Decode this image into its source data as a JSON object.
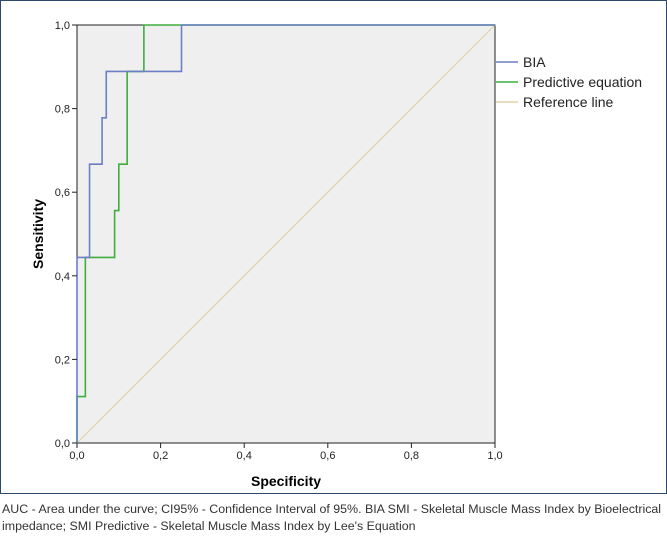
{
  "chart_data": {
    "type": "line",
    "title": "",
    "xlabel": "Specificity",
    "ylabel": "Sensitivity",
    "xlim": [
      0,
      1
    ],
    "ylim": [
      0,
      1
    ],
    "xticks": [
      "0,0",
      "0,2",
      "0,4",
      "0,6",
      "0,8",
      "1,0"
    ],
    "yticks": [
      "0,0",
      "0,2",
      "0,4",
      "0,6",
      "0,8",
      "1,0"
    ],
    "legend_position": "right",
    "series": [
      {
        "name": "BIA",
        "color": "#6b7fc4",
        "x": [
          0,
          0,
          0.03,
          0.03,
          0.06,
          0.06,
          0.07,
          0.07,
          0.25,
          0.25,
          1
        ],
        "y": [
          0,
          0.444,
          0.444,
          0.667,
          0.667,
          0.778,
          0.778,
          0.889,
          0.889,
          1,
          1
        ]
      },
      {
        "name": "Predictive equation",
        "color": "#3fae3f",
        "x": [
          0,
          0,
          0.02,
          0.02,
          0.09,
          0.09,
          0.1,
          0.1,
          0.12,
          0.12,
          0.16,
          0.16,
          1
        ],
        "y": [
          0,
          0.111,
          0.111,
          0.444,
          0.444,
          0.556,
          0.556,
          0.667,
          0.667,
          0.889,
          0.889,
          1,
          1
        ]
      },
      {
        "name": "Reference line",
        "color": "#e0d2a8",
        "x": [
          0,
          1
        ],
        "y": [
          0,
          1
        ]
      }
    ]
  },
  "caption": "AUC - Area under the curve; CI95% - Confidence Interval of 95%. BIA SMI - Skeletal Muscle Mass Index by Bioelectrical impedance; SMI Predictive - Skeletal Muscle Mass Index by Lee's Equation"
}
